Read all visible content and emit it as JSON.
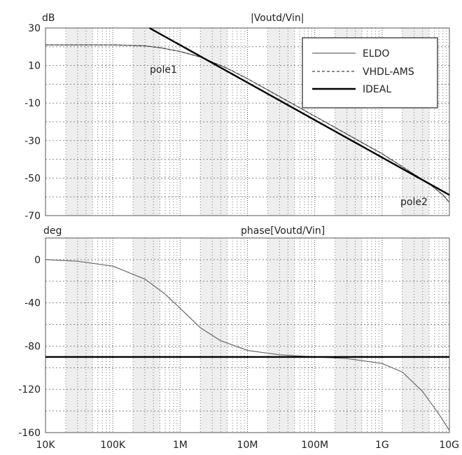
{
  "chart_data": [
    {
      "type": "line",
      "title": "|Voutd/Vin|",
      "ylabel": "dB",
      "xscale": "log",
      "xlim": [
        10000,
        10000000000
      ],
      "ylim": [
        -70,
        30
      ],
      "yticks": [
        30,
        10,
        -10,
        -30,
        -50,
        -70
      ],
      "grid": true,
      "legend_position": "top-right",
      "annotations": [
        "pole1",
        "pole2"
      ],
      "series": [
        {
          "name": "ELDO",
          "color": "#666666",
          "style": "solid",
          "x": [
            10000,
            30000,
            100000,
            300000,
            500000,
            1000000,
            2000000,
            5000000,
            10000000,
            100000000,
            1000000000,
            3000000000,
            5000000000,
            8000000000,
            10000000000
          ],
          "y": [
            21,
            21,
            21,
            20.5,
            19.5,
            17.5,
            14.5,
            8.5,
            3,
            -17,
            -37,
            -48,
            -53,
            -59,
            -63
          ]
        },
        {
          "name": "VHDL-AMS",
          "color": "#444444",
          "style": "dashed",
          "x": [
            10000,
            30000,
            100000,
            300000,
            500000,
            1000000,
            2000000,
            5000000,
            10000000,
            100000000,
            1000000000,
            3000000000,
            5000000000,
            8000000000,
            10000000000
          ],
          "y": [
            21,
            21,
            21,
            20.5,
            19.5,
            17.5,
            14.5,
            8.5,
            3,
            -17,
            -37,
            -48,
            -53,
            -59,
            -63
          ]
        },
        {
          "name": "IDEAL",
          "color": "#000000",
          "style": "thick",
          "x": [
            350000,
            10000000000
          ],
          "y": [
            30,
            -59
          ]
        }
      ]
    },
    {
      "type": "line",
      "title": "phase[Voutd/Vin]",
      "ylabel": "deg",
      "xscale": "log",
      "xlim": [
        10000,
        10000000000
      ],
      "ylim": [
        -160,
        20
      ],
      "yticks": [
        0,
        -40,
        -80,
        -120,
        -160
      ],
      "xticks": [
        "10K",
        "100K",
        "1M",
        "10M",
        "100M",
        "1G",
        "10G"
      ],
      "grid": true,
      "series": [
        {
          "name": "ELDO",
          "color": "#666666",
          "style": "solid",
          "x": [
            10000,
            30000,
            100000,
            300000,
            600000,
            1000000,
            2000000,
            4000000,
            10000000,
            30000000,
            100000000,
            300000000,
            1000000000,
            2000000000,
            4000000000,
            7000000000,
            10000000000
          ],
          "y": [
            0,
            -1.5,
            -6,
            -18,
            -32,
            -45,
            -63,
            -75,
            -84,
            -88,
            -90,
            -91.5,
            -96,
            -104,
            -122,
            -143,
            -158
          ]
        },
        {
          "name": "IDEAL",
          "color": "#000000",
          "style": "thick",
          "x": [
            10000,
            10000000000
          ],
          "y": [
            -90,
            -90
          ]
        }
      ]
    }
  ]
}
